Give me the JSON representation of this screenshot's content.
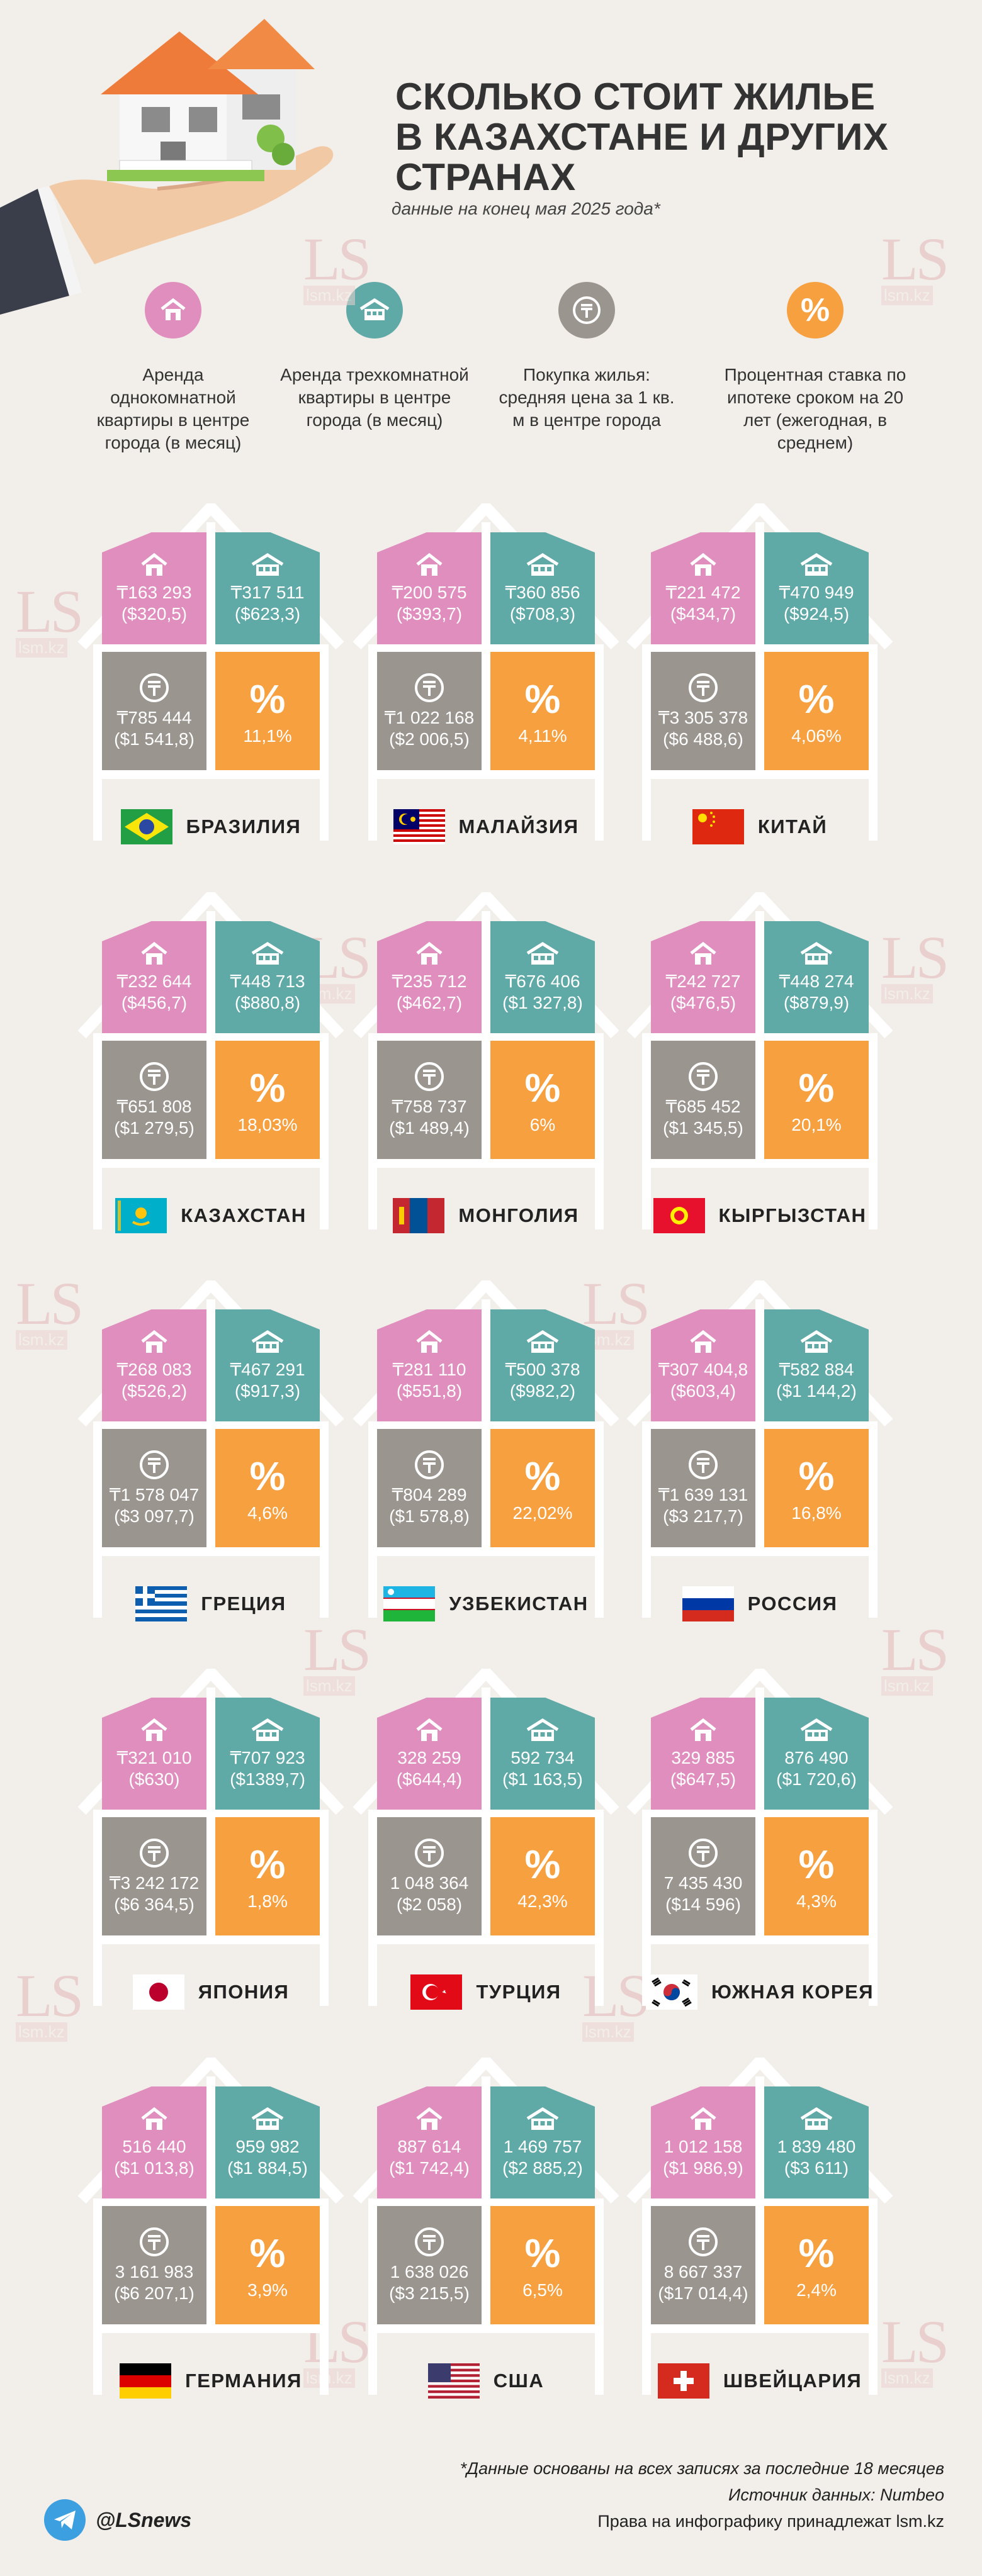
{
  "title": [
    "Сколько стоит жилье",
    "в Казахстане и других",
    "странах"
  ],
  "subtitle": "данные на конец мая 2025 года*",
  "legend": [
    {
      "text": "Аренда однокомнатной квартиры в центре города (в месяц)",
      "color": "#e08ebd",
      "icon": "house-small-icon"
    },
    {
      "text": "Аренда трехкомнатной квартиры в центре города (в месяц)",
      "color": "#5fa9a6",
      "icon": "house-large-icon"
    },
    {
      "text": "Покупка жилья: средняя цена за 1 кв. м в центре города",
      "color": "#9a958f",
      "icon": "tenge-coin-icon"
    },
    {
      "text": "Процентная ставка по ипотеке сроком на 20 лет (ежегодная, в среднем)",
      "color": "#f6a040",
      "icon": "percent-icon"
    }
  ],
  "watermark": {
    "logo": "LS",
    "url": "lsm.kz"
  },
  "countries": [
    {
      "name": "БРАЗИЛИЯ",
      "flag": "brazil",
      "one": {
        "val": "₸163 293",
        "usd": "($320,5)"
      },
      "three": {
        "val": "₸317 511",
        "usd": "($623,3)"
      },
      "buy": {
        "val": "₸785 444",
        "usd": "($1 541,8)"
      },
      "rate": "11,1%"
    },
    {
      "name": "МАЛАЙЗИЯ",
      "flag": "malaysia",
      "one": {
        "val": "₸200 575",
        "usd": "($393,7)"
      },
      "three": {
        "val": "₸360 856",
        "usd": "($708,3)"
      },
      "buy": {
        "val": "₸1 022 168",
        "usd": "($2 006,5)"
      },
      "rate": "4,11%"
    },
    {
      "name": "КИТАЙ",
      "flag": "china",
      "one": {
        "val": "₸221 472",
        "usd": "($434,7)"
      },
      "three": {
        "val": "₸470 949",
        "usd": "($924,5)"
      },
      "buy": {
        "val": "₸3 305 378",
        "usd": "($6 488,6)"
      },
      "rate": "4,06%"
    },
    {
      "name": "КАЗАХСТАН",
      "flag": "kazakhstan",
      "one": {
        "val": "₸232 644",
        "usd": "($456,7)"
      },
      "three": {
        "val": "₸448 713",
        "usd": "($880,8)"
      },
      "buy": {
        "val": "₸651 808",
        "usd": "($1 279,5)"
      },
      "rate": "18,03%"
    },
    {
      "name": "МОНГОЛИЯ",
      "flag": "mongolia",
      "one": {
        "val": "₸235 712",
        "usd": "($462,7)"
      },
      "three": {
        "val": "₸676 406",
        "usd": "($1 327,8)"
      },
      "buy": {
        "val": "₸758 737",
        "usd": "($1 489,4)"
      },
      "rate": "6%"
    },
    {
      "name": "КЫРГЫЗСТАН",
      "flag": "kyrgyzstan",
      "one": {
        "val": "₸242 727",
        "usd": "($476,5)"
      },
      "three": {
        "val": "₸448 274",
        "usd": "($879,9)"
      },
      "buy": {
        "val": "₸685 452",
        "usd": "($1 345,5)"
      },
      "rate": "20,1%"
    },
    {
      "name": "ГРЕЦИЯ",
      "flag": "greece",
      "one": {
        "val": "₸268 083",
        "usd": "($526,2)"
      },
      "three": {
        "val": "₸467 291",
        "usd": "($917,3)"
      },
      "buy": {
        "val": "₸1 578 047",
        "usd": "($3 097,7)"
      },
      "rate": "4,6%"
    },
    {
      "name": "УЗБЕКИСТАН",
      "flag": "uzbekistan",
      "one": {
        "val": "₸281 110",
        "usd": "($551,8)"
      },
      "three": {
        "val": "₸500 378",
        "usd": "($982,2)"
      },
      "buy": {
        "val": "₸804 289",
        "usd": "($1 578,8)"
      },
      "rate": "22,02%"
    },
    {
      "name": "РОССИЯ",
      "flag": "russia",
      "one": {
        "val": "₸307 404,8",
        "usd": "($603,4)"
      },
      "three": {
        "val": "₸582 884",
        "usd": "($1 144,2)"
      },
      "buy": {
        "val": "₸1 639 131",
        "usd": "($3 217,7)"
      },
      "rate": "16,8%"
    },
    {
      "name": "ЯПОНИЯ",
      "flag": "japan",
      "one": {
        "val": "₸321 010",
        "usd": "($630)"
      },
      "three": {
        "val": "₸707 923",
        "usd": "($1389,7)"
      },
      "buy": {
        "val": "₸3 242 172",
        "usd": "($6 364,5)"
      },
      "rate": "1,8%"
    },
    {
      "name": "ТУРЦИЯ",
      "flag": "turkey",
      "one": {
        "val": "328 259",
        "usd": "($644,4)"
      },
      "three": {
        "val": "592 734",
        "usd": "($1 163,5)"
      },
      "buy": {
        "val": "1 048 364",
        "usd": "($2 058)"
      },
      "rate": "42,3%"
    },
    {
      "name": "ЮЖНАЯ КОРЕЯ",
      "flag": "south-korea",
      "one": {
        "val": "329 885",
        "usd": "($647,5)"
      },
      "three": {
        "val": "876 490",
        "usd": "($1 720,6)"
      },
      "buy": {
        "val": "7 435 430",
        "usd": "($14 596)"
      },
      "rate": "4,3%"
    },
    {
      "name": "ГЕРМАНИЯ",
      "flag": "germany",
      "one": {
        "val": "516 440",
        "usd": "($1 013,8)"
      },
      "three": {
        "val": "959 982",
        "usd": "($1 884,5)"
      },
      "buy": {
        "val": "3 161 983",
        "usd": "($6 207,1)"
      },
      "rate": "3,9%"
    },
    {
      "name": "США",
      "flag": "usa",
      "one": {
        "val": "887 614",
        "usd": "($1 742,4)"
      },
      "three": {
        "val": "1 469 757",
        "usd": "($2 885,2)"
      },
      "buy": {
        "val": "1 638 026",
        "usd": "($3 215,5)"
      },
      "rate": "6,5%"
    },
    {
      "name": "ШВЕЙЦАРИЯ",
      "flag": "switzerland",
      "one": {
        "val": "1 012 158",
        "usd": "($1 986,9)"
      },
      "three": {
        "val": "1 839 480",
        "usd": "($3 611)"
      },
      "buy": {
        "val": "8 667 337",
        "usd": "($17 014,4)"
      },
      "rate": "2,4%"
    }
  ],
  "percent_symbol": "%",
  "footer": {
    "note": "*Данные основаны на всех записях за последние 18 месяцев",
    "source": "Источник данных: Numbeo",
    "rights": "Права на инфографику принадлежат lsm.kz"
  },
  "telegram_handle": "@LSnews",
  "colors": {
    "pink": "#e08ebd",
    "teal": "#5fa9a6",
    "grey": "#9a958f",
    "orange": "#f6a040",
    "frame": "#ffffff",
    "background": "#f2eee9"
  }
}
